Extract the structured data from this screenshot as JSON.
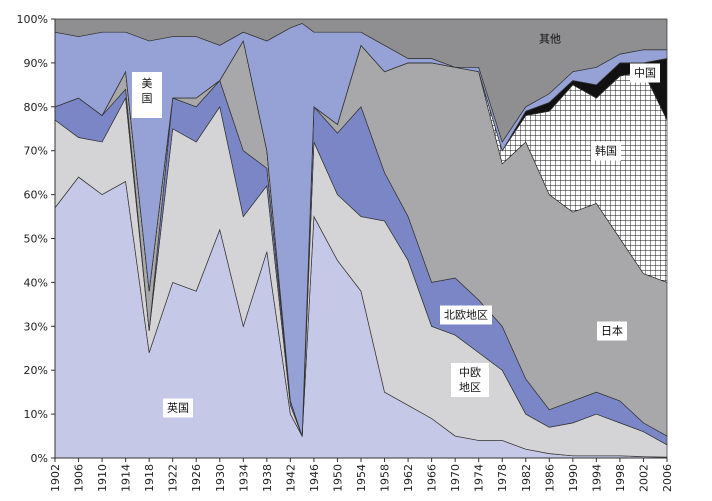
{
  "chart_data": {
    "type": "stacked_area",
    "x": [
      1902,
      1906,
      1910,
      1914,
      1918,
      1922,
      1926,
      1930,
      1934,
      1938,
      1942,
      1944,
      1946,
      1950,
      1954,
      1958,
      1962,
      1966,
      1970,
      1974,
      1978,
      1982,
      1986,
      1990,
      1994,
      1998,
      2002,
      2006
    ],
    "series": [
      {
        "name": "英国",
        "color": "#c5c8e6",
        "values": [
          57,
          64,
          60,
          63,
          24,
          40,
          38,
          52,
          30,
          47,
          10,
          5,
          55,
          45,
          38,
          15,
          12,
          9,
          5,
          4,
          4,
          2,
          1,
          0.5,
          0.5,
          0.5,
          0.3,
          0.2
        ]
      },
      {
        "name": "中欧地区",
        "color": "#d4d4d6",
        "values": [
          20,
          9,
          12,
          19,
          5,
          35,
          34,
          28,
          25,
          15,
          2,
          0,
          17,
          15,
          17,
          39,
          33,
          21,
          23,
          20,
          16,
          8,
          6,
          7.5,
          9.5,
          7.5,
          5.7,
          2.8
        ]
      },
      {
        "name": "北欧地区",
        "color": "#7b86c6",
        "values": [
          3,
          9,
          6,
          2,
          0,
          7,
          8,
          6,
          15,
          4,
          1,
          0,
          8,
          14,
          25,
          11,
          10,
          10,
          13,
          12,
          10,
          8,
          4,
          5,
          5,
          5,
          2,
          2
        ]
      },
      {
        "name": "日本",
        "color": "#a8a8aa",
        "values": [
          0,
          0,
          0,
          4,
          9,
          0,
          2,
          0,
          25,
          4,
          0,
          0,
          0,
          2,
          14,
          23,
          35,
          50,
          48,
          52,
          37,
          54,
          49,
          43,
          43,
          37,
          34,
          35
        ]
      },
      {
        "name": "韩国",
        "color": "#ffffff",
        "pattern": "grid",
        "values": [
          0,
          0,
          0,
          0,
          0,
          0,
          0,
          0,
          0,
          0,
          0,
          0,
          0,
          0,
          0,
          0,
          0,
          0,
          0,
          0,
          3,
          6,
          19,
          29,
          24,
          37,
          46,
          37
        ]
      },
      {
        "name": "中国",
        "color": "#111111",
        "values": [
          0,
          0,
          0,
          0,
          0,
          0,
          0,
          0,
          0,
          0,
          0,
          0,
          0,
          0,
          0,
          0,
          0,
          0,
          0,
          0,
          0,
          1,
          2,
          1,
          3,
          3,
          2,
          14
        ]
      },
      {
        "name": "美国",
        "color": "#96a2d6",
        "values": [
          17,
          14,
          19,
          9,
          57,
          14,
          14,
          8,
          2,
          25,
          85,
          94,
          17,
          21,
          3,
          6,
          1,
          1,
          0,
          1,
          2,
          1,
          2,
          2,
          4,
          2,
          3,
          2
        ]
      },
      {
        "name": "其他",
        "color": "#8f8f91",
        "values": [
          3,
          4,
          3,
          3,
          5,
          4,
          4,
          6,
          3,
          5,
          2,
          1,
          3,
          3,
          3,
          6,
          9,
          9,
          11,
          11,
          28,
          20,
          17,
          12,
          11,
          8,
          7,
          7
        ]
      }
    ],
    "xlim": [
      1902,
      2006
    ],
    "xticks": [
      1902,
      1906,
      1910,
      1914,
      1918,
      1922,
      1926,
      1930,
      1934,
      1938,
      1942,
      1946,
      1950,
      1954,
      1958,
      1962,
      1966,
      1970,
      1974,
      1978,
      1982,
      1986,
      1990,
      1994,
      1998,
      2002,
      2006
    ],
    "ylim": [
      0,
      100
    ],
    "yticks": [
      {
        "value": 0,
        "label": "0%"
      },
      {
        "value": 10,
        "label": "10%"
      },
      {
        "value": 20,
        "label": "20%"
      },
      {
        "value": 30,
        "label": "30%"
      },
      {
        "value": 40,
        "label": "40%"
      },
      {
        "value": 50,
        "label": "50%"
      },
      {
        "value": 60,
        "label": "60%"
      },
      {
        "value": 70,
        "label": "70%"
      },
      {
        "value": 80,
        "label": "80%"
      },
      {
        "value": 90,
        "label": "90%"
      },
      {
        "value": 100,
        "label": "100%"
      }
    ]
  }
}
